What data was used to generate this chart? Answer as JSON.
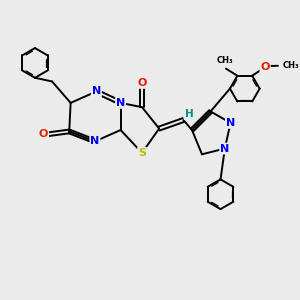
{
  "bg_color": "#ebebeb",
  "figsize": [
    3.0,
    3.0
  ],
  "dpi": 100,
  "atom_colors": {
    "N": "#0000ee",
    "O": "#dd2200",
    "S": "#bbbb00",
    "C": "#000000",
    "H": "#008888"
  },
  "bond_color": "#000000",
  "bond_lw": 1.4
}
